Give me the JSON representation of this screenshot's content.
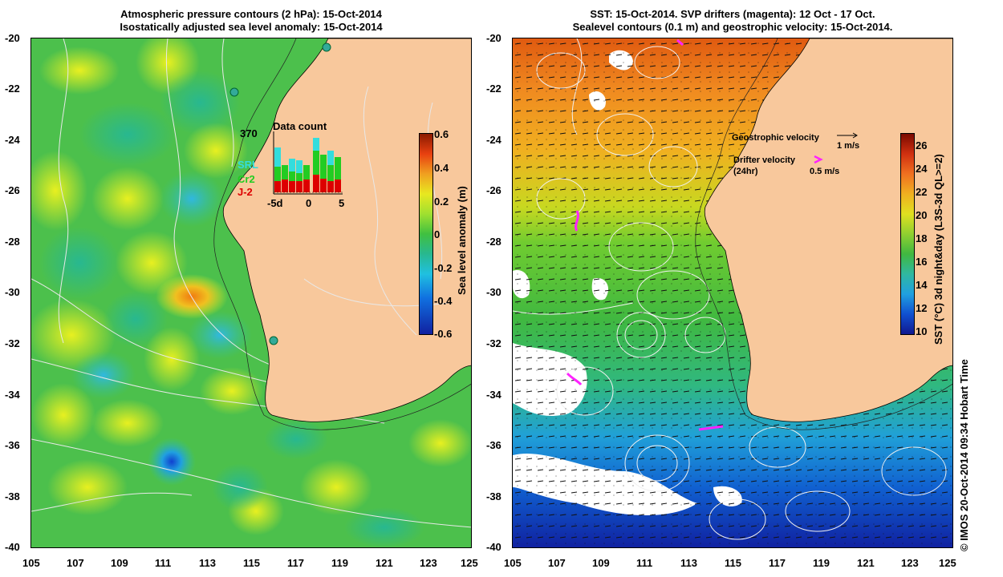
{
  "left_panel": {
    "title_line1": "Atmospheric pressure contours (2 hPa): 15-Oct-2014",
    "title_line2": "Isostatically adjusted sea level anomaly: 15-Oct-2014",
    "colorbar_label": "Sea level anomaly (m)",
    "colorbar_ticks": [
      "0.6",
      "0.4",
      "0.2",
      "0",
      "-0.2",
      "-0.4",
      "-0.6"
    ],
    "inset": {
      "title": "Data count",
      "max_label": "370",
      "xticks": [
        "-5d",
        "0",
        "5"
      ],
      "legend": [
        {
          "label": "SRL",
          "color": "#33dddd"
        },
        {
          "label": "Cr2",
          "color": "#22cc22"
        },
        {
          "label": "J-2",
          "color": "#dd0000"
        }
      ]
    }
  },
  "right_panel": {
    "title_line1": "SST: 15-Oct-2014. SVP drifters (magenta): 12 Oct - 17 Oct.",
    "title_line2": "Sealevel contours (0.1 m) and geostrophic velocity: 15-Oct-2014.",
    "colorbar_label": "SST (°C) 3d night&day (L3S-3d QL>=2)",
    "colorbar_ticks": [
      "26",
      "24",
      "22",
      "20",
      "18",
      "16",
      "14",
      "12",
      "10"
    ],
    "geostrophic_label": "Geostrophic velocity",
    "geostrophic_scale": "1 m/s",
    "drifter_label_1": "Drifter velocity",
    "drifter_label_2": "(24hr)",
    "drifter_scale": "0.5 m/s"
  },
  "axes": {
    "y_ticks": [
      "-20",
      "-22",
      "-24",
      "-26",
      "-28",
      "-30",
      "-32",
      "-34",
      "-36",
      "-38",
      "-40"
    ],
    "x_ticks": [
      "105",
      "107",
      "109",
      "111",
      "113",
      "115",
      "117",
      "119",
      "121",
      "123",
      "125"
    ]
  },
  "credit": "© IMOS 20-Oct-2014 09:34 Hobart Time",
  "colors": {
    "land": "#f8c89c",
    "sla_background": "#4cc04c",
    "magenta": "#ff22ff"
  }
}
